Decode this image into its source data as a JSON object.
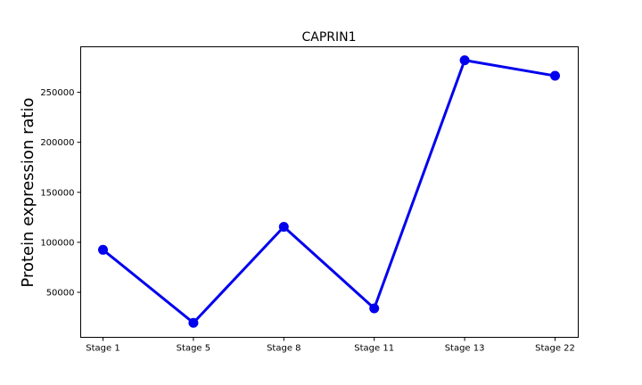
{
  "chart_data": {
    "type": "line",
    "title": "CAPRIN1",
    "xlabel": "",
    "ylabel": "Protein expression ratio",
    "categories": [
      "Stage 1",
      "Stage 5",
      "Stage 8",
      "Stage 11",
      "Stage 13",
      "Stage 22"
    ],
    "series": [
      {
        "values": [
          92500,
          19500,
          115500,
          34000,
          282000,
          266500
        ],
        "color": "#0000ee"
      }
    ],
    "yticks": [
      50000,
      100000,
      150000,
      200000,
      250000
    ],
    "ylim": [
      5000,
      295500
    ],
    "grid": false,
    "legend": "none"
  }
}
